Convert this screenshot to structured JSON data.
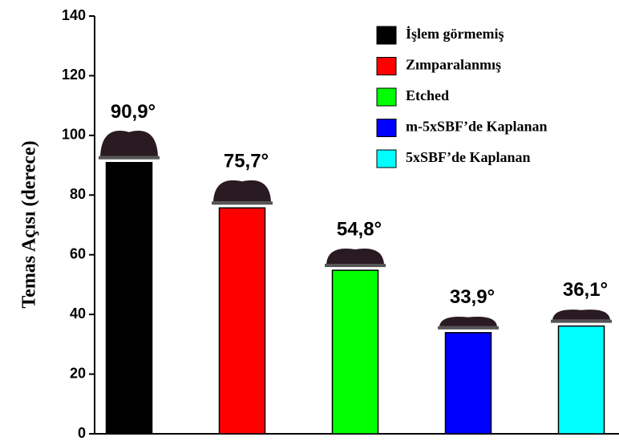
{
  "chart_data": {
    "type": "bar",
    "y_label": "Temas Açısı (derece)",
    "ylim": [
      0,
      140
    ],
    "yticks": [
      0,
      20,
      40,
      60,
      80,
      100,
      120,
      140
    ],
    "legend": "upper right",
    "series": [
      {
        "name": "İşlem görmemiş",
        "color": "#000000",
        "values": [
          90.9
        ],
        "value_labels": [
          "90,9°"
        ]
      },
      {
        "name": "Zımparalanmış",
        "color": "#ff0000",
        "values": [
          75.7
        ],
        "value_labels": [
          "75,7°"
        ]
      },
      {
        "name": "Etched",
        "color": "#00ff00",
        "values": [
          54.8
        ],
        "value_labels": [
          "54,8°"
        ]
      },
      {
        "name": "m-5xSBF’de Kaplanan",
        "color": "#0000ff",
        "values": [
          33.9
        ],
        "value_labels": [
          "33,9°"
        ]
      },
      {
        "name": "5xSBF’de Kaplanan",
        "color": "#00ffff",
        "values": [
          36.1
        ],
        "value_labels": [
          "36,1°"
        ]
      }
    ]
  }
}
